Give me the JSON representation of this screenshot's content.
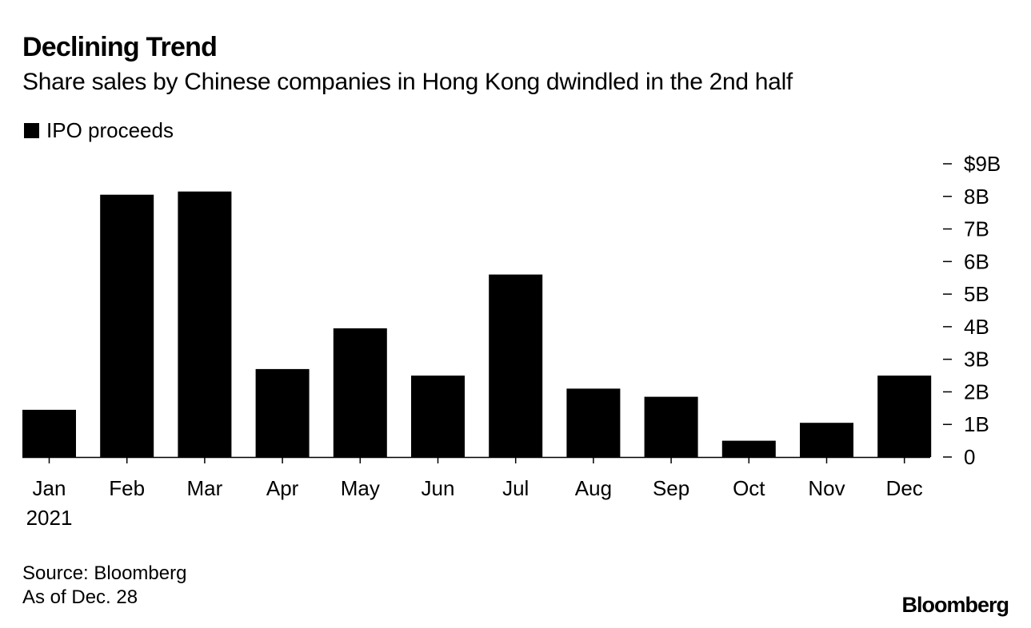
{
  "chart_data": {
    "type": "bar",
    "title": "Declining Trend",
    "subtitle": "Share sales by Chinese companies in Hong Kong dwindled in the 2nd half",
    "legend": [
      "IPO proceeds"
    ],
    "categories": [
      "Jan",
      "Feb",
      "Mar",
      "Apr",
      "May",
      "Jun",
      "Jul",
      "Aug",
      "Sep",
      "Oct",
      "Nov",
      "Dec"
    ],
    "category_sublabel": "2021",
    "series": [
      {
        "name": "IPO proceeds",
        "unit": "$B",
        "values": [
          1.45,
          8.05,
          8.15,
          2.7,
          3.95,
          2.5,
          5.6,
          2.1,
          1.85,
          0.5,
          1.05,
          2.5
        ]
      }
    ],
    "y_ticks": [
      {
        "value": 0,
        "label": "0"
      },
      {
        "value": 1,
        "label": "1B"
      },
      {
        "value": 2,
        "label": "2B"
      },
      {
        "value": 3,
        "label": "3B"
      },
      {
        "value": 4,
        "label": "4B"
      },
      {
        "value": 5,
        "label": "5B"
      },
      {
        "value": 6,
        "label": "6B"
      },
      {
        "value": 7,
        "label": "7B"
      },
      {
        "value": 8,
        "label": "8B"
      },
      {
        "value": 9,
        "label": "$9B"
      }
    ],
    "ylim": [
      0,
      9
    ],
    "xlabel": "",
    "ylabel": "",
    "grid": false,
    "y_axis_side": "right",
    "bar_color": "#000000"
  },
  "footer": {
    "source": "Source: Bloomberg",
    "as_of": "As of Dec. 28",
    "brand": "Bloomberg"
  }
}
